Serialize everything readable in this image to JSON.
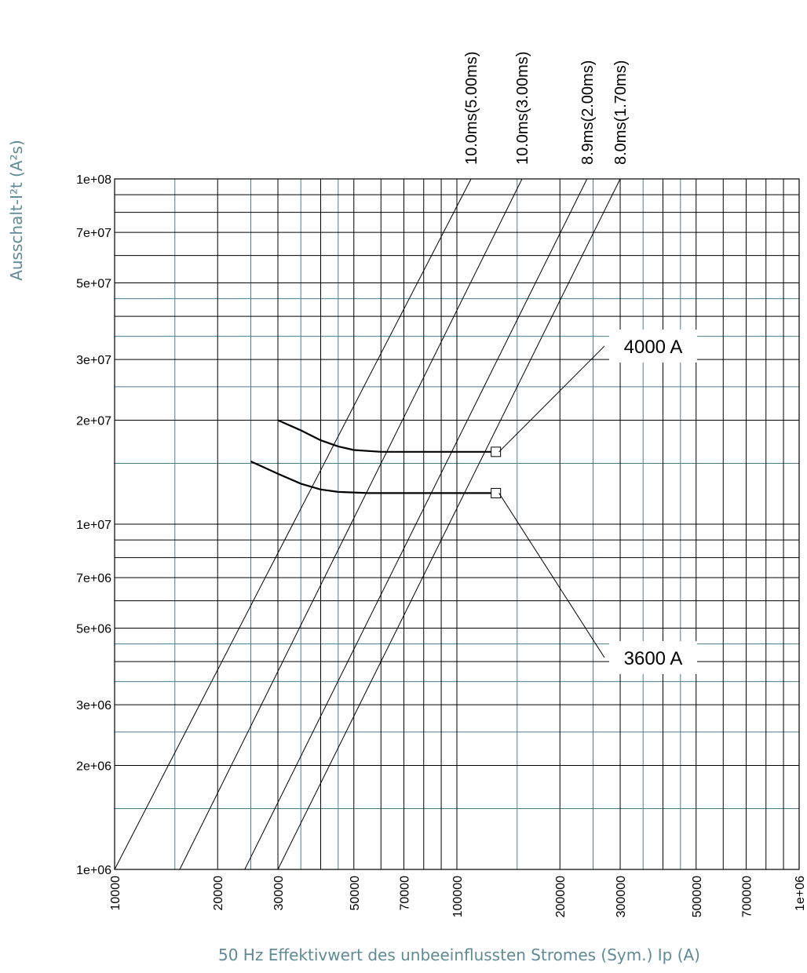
{
  "chart_data": {
    "type": "line",
    "xscale": "log",
    "yscale": "log",
    "xlim": [
      10000,
      1000000
    ],
    "ylim": [
      1000000,
      100000000
    ],
    "grid": true,
    "xlabel": "50 Hz Effektivwert des unbeeinflussten Stromes (Sym.) Ip (A)",
    "ylabel": "Ausschalt-I²t (A²s)",
    "colors": {
      "major_grid": "#000000",
      "minor_grid": "#4d7c8a",
      "axis_title": "#5f8a96"
    },
    "xticks": [
      {
        "value": 10000,
        "label": "10000"
      },
      {
        "value": 20000,
        "label": "20000"
      },
      {
        "value": 30000,
        "label": "30000"
      },
      {
        "value": 50000,
        "label": "50000"
      },
      {
        "value": 70000,
        "label": "70000"
      },
      {
        "value": 100000,
        "label": "100000"
      },
      {
        "value": 200000,
        "label": "200000"
      },
      {
        "value": 300000,
        "label": "300000"
      },
      {
        "value": 500000,
        "label": "500000"
      },
      {
        "value": 700000,
        "label": "700000"
      },
      {
        "value": 1000000,
        "label": "1e+06"
      }
    ],
    "yticks": [
      {
        "value": 1000000,
        "label": "1e+06"
      },
      {
        "value": 2000000,
        "label": "2e+06"
      },
      {
        "value": 3000000,
        "label": "3e+06"
      },
      {
        "value": 5000000,
        "label": "5e+06"
      },
      {
        "value": 7000000,
        "label": "7e+06"
      },
      {
        "value": 10000000,
        "label": "1e+07"
      },
      {
        "value": 20000000,
        "label": "2e+07"
      },
      {
        "value": 30000000,
        "label": "3e+07"
      },
      {
        "value": 50000000,
        "label": "5e+07"
      },
      {
        "value": 70000000,
        "label": "7e+07"
      },
      {
        "value": 100000000,
        "label": "1e+08"
      }
    ],
    "reference_lines": [
      {
        "label": "10.0ms(5.00ms)",
        "x_at_ymin": 10000,
        "x_at_ymax": 110000
      },
      {
        "label": "10.0ms(3.00ms)",
        "x_at_ymin": 15500,
        "x_at_ymax": 155000
      },
      {
        "label": "8.9ms(2.00ms)",
        "x_at_ymin": 24000,
        "x_at_ymax": 240000
      },
      {
        "label": "8.0ms(1.70ms)",
        "x_at_ymin": 30000,
        "x_at_ymax": 300000
      }
    ],
    "series": [
      {
        "name": "4000 A",
        "x": [
          30000,
          35000,
          40000,
          45000,
          50000,
          60000,
          80000,
          100000,
          130000
        ],
        "y": [
          20000000,
          18700000,
          17500000,
          16800000,
          16400000,
          16200000,
          16200000,
          16200000,
          16200000
        ],
        "marker_end": [
          130000,
          16200000
        ]
      },
      {
        "name": "3600 A",
        "x": [
          25000,
          30000,
          35000,
          40000,
          45000,
          55000,
          70000,
          100000,
          130000
        ],
        "y": [
          15200000,
          14000000,
          13100000,
          12600000,
          12400000,
          12300000,
          12300000,
          12300000,
          12300000
        ],
        "marker_end": [
          130000,
          12300000
        ]
      }
    ]
  }
}
